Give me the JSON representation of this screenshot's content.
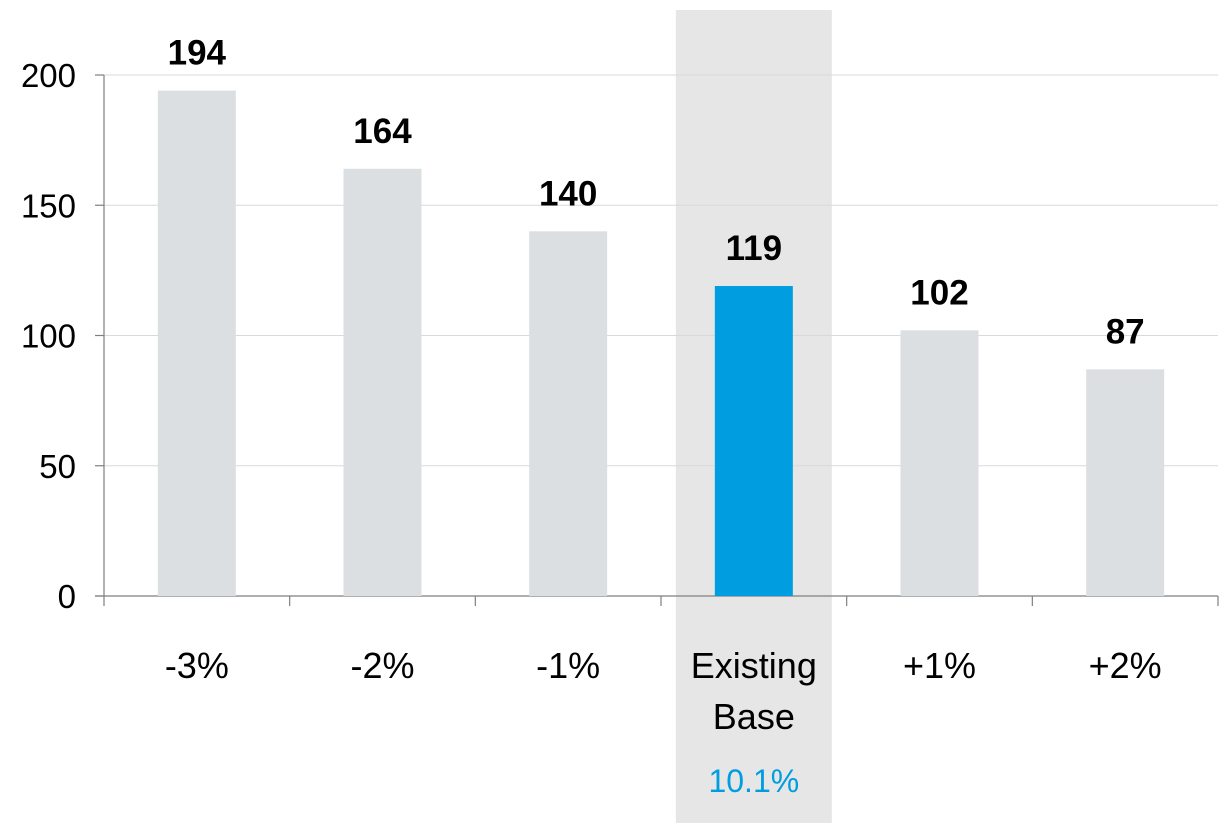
{
  "chart_data": {
    "type": "bar",
    "title": "",
    "xlabel": "",
    "ylabel": "",
    "categories": [
      "-3%",
      "-2%",
      "-1%",
      "Existing Base",
      "+1%",
      "+2%"
    ],
    "values": [
      194,
      164,
      140,
      119,
      102,
      87
    ],
    "data_labels": [
      "194",
      "164",
      "140",
      "119",
      "102",
      "87"
    ],
    "highlight_index": 3,
    "highlight_note": "10.1%",
    "ylim": [
      0,
      200
    ],
    "yticks": [
      0,
      50,
      100,
      150,
      200
    ],
    "ytick_labels": [
      "0",
      "50",
      "100",
      "150",
      "200"
    ],
    "grid": true,
    "legend": "none",
    "colors": {
      "bar": "#dcdfe2",
      "highlight_bar": "#009ee0",
      "highlight_band": "#e6e6e6",
      "highlight_text": "#009ee0",
      "axis": "#7f7f7f",
      "grid": "#d9d9d9",
      "text": "#000000"
    }
  }
}
